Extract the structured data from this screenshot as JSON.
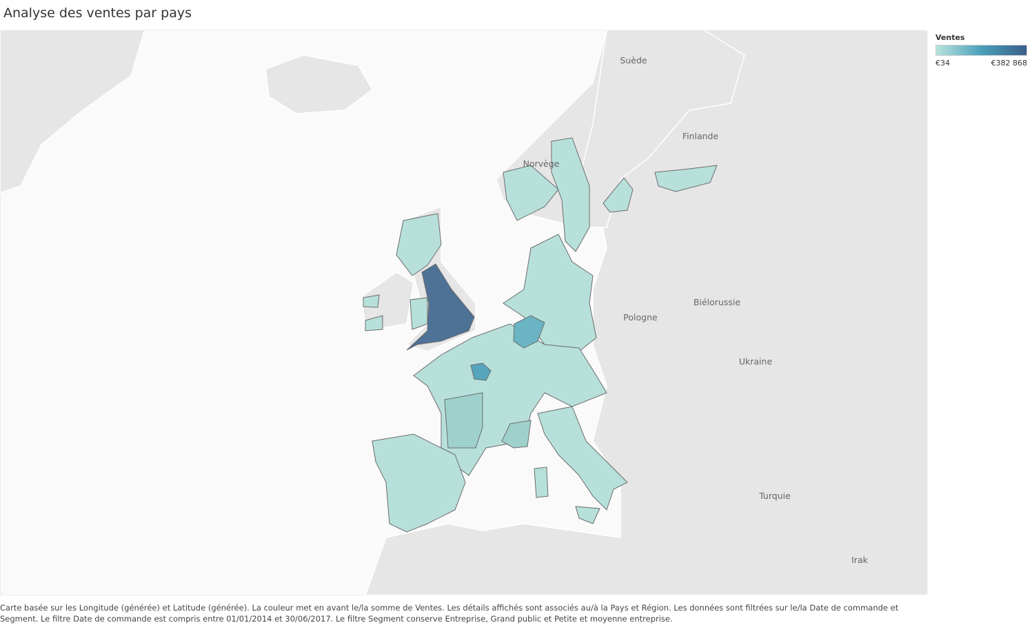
{
  "title": "Analyse des ventes par pays",
  "legend": {
    "title": "Ventes",
    "min_label": "€34",
    "max_label": "€382 868",
    "colors": [
      "#b9e3dc",
      "#4aa0ba",
      "#3b5f8a"
    ]
  },
  "map_labels": [
    "Suède",
    "Finlande",
    "Norvège",
    "Pologne",
    "Biélorussie",
    "Ukraine",
    "Turquie",
    "Irak"
  ],
  "caption": "Carte basée sur les Longitude (générée) et Latitude (générée).  La couleur met en avant le/la somme de Ventes.  Les détails affichés sont associés au/à la Pays et Région. Les données sont filtrées sur le/la Date de commande et Segment. Le filtre Date de commande est compris entre 01/01/2014 et 30/06/2017. Le filtre Segment conserve Entreprise, Grand public et Petite et moyenne entreprise."
}
